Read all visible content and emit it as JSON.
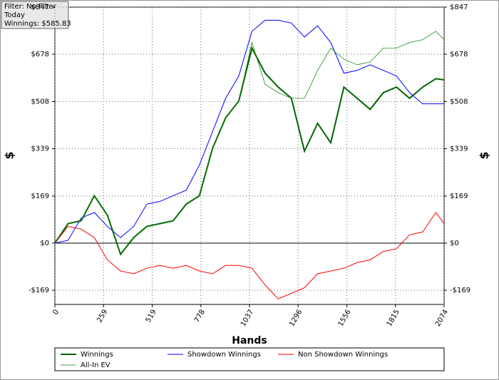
{
  "chart_data": {
    "type": "line",
    "annotations": [
      "Filter: No Filter",
      "Today",
      "Winnings: $585.83"
    ],
    "x_label": "Hands",
    "y_label": "$",
    "x": [
      0,
      70,
      140,
      210,
      280,
      350,
      420,
      490,
      560,
      630,
      700,
      770,
      840,
      910,
      980,
      1050,
      1120,
      1190,
      1260,
      1330,
      1400,
      1470,
      1540,
      1610,
      1680,
      1750,
      1820,
      1890,
      1960,
      2030,
      2074
    ],
    "xlim": [
      0,
      2074
    ],
    "xticks": [
      0,
      259,
      519,
      778,
      1037,
      1296,
      1556,
      1815,
      2074
    ],
    "ylim": [
      -220,
      847
    ],
    "yticks": [
      {
        "value": -169,
        "label": "-$169"
      },
      {
        "value": 0,
        "label": "$0"
      },
      {
        "value": 169,
        "label": "$169"
      },
      {
        "value": 339,
        "label": "$339"
      },
      {
        "value": 508,
        "label": "$508"
      },
      {
        "value": 678,
        "label": "$678"
      },
      {
        "value": 847,
        "label": "$847"
      }
    ],
    "grid": true,
    "series": [
      {
        "name": "Winnings",
        "color": "#006400",
        "values": [
          0,
          70,
          80,
          170,
          100,
          -40,
          20,
          60,
          70,
          80,
          140,
          170,
          340,
          450,
          510,
          700,
          610,
          560,
          520,
          330,
          430,
          360,
          560,
          520,
          480,
          540,
          560,
          520,
          560,
          590,
          586
        ]
      },
      {
        "name": "Showdown Winnings",
        "color": "#0000ff",
        "values": [
          0,
          10,
          90,
          110,
          60,
          20,
          60,
          140,
          150,
          170,
          190,
          280,
          400,
          520,
          600,
          760,
          800,
          800,
          790,
          740,
          780,
          720,
          610,
          620,
          640,
          620,
          600,
          540,
          500,
          500,
          500
        ]
      },
      {
        "name": "Non Showdown Winnings",
        "color": "#ff0000",
        "values": [
          0,
          60,
          50,
          20,
          -60,
          -100,
          -110,
          -90,
          -80,
          -90,
          -80,
          -100,
          -110,
          -80,
          -80,
          -90,
          -150,
          -200,
          -180,
          -160,
          -110,
          -100,
          -90,
          -70,
          -60,
          -30,
          -20,
          30,
          40,
          110,
          70
        ]
      },
      {
        "name": "All-In EV",
        "color": "#008000",
        "values": [
          0,
          70,
          80,
          170,
          100,
          -40,
          20,
          60,
          70,
          80,
          140,
          170,
          340,
          450,
          510,
          720,
          570,
          540,
          520,
          520,
          620,
          700,
          660,
          640,
          650,
          700,
          700,
          720,
          730,
          760,
          730
        ]
      }
    ]
  }
}
